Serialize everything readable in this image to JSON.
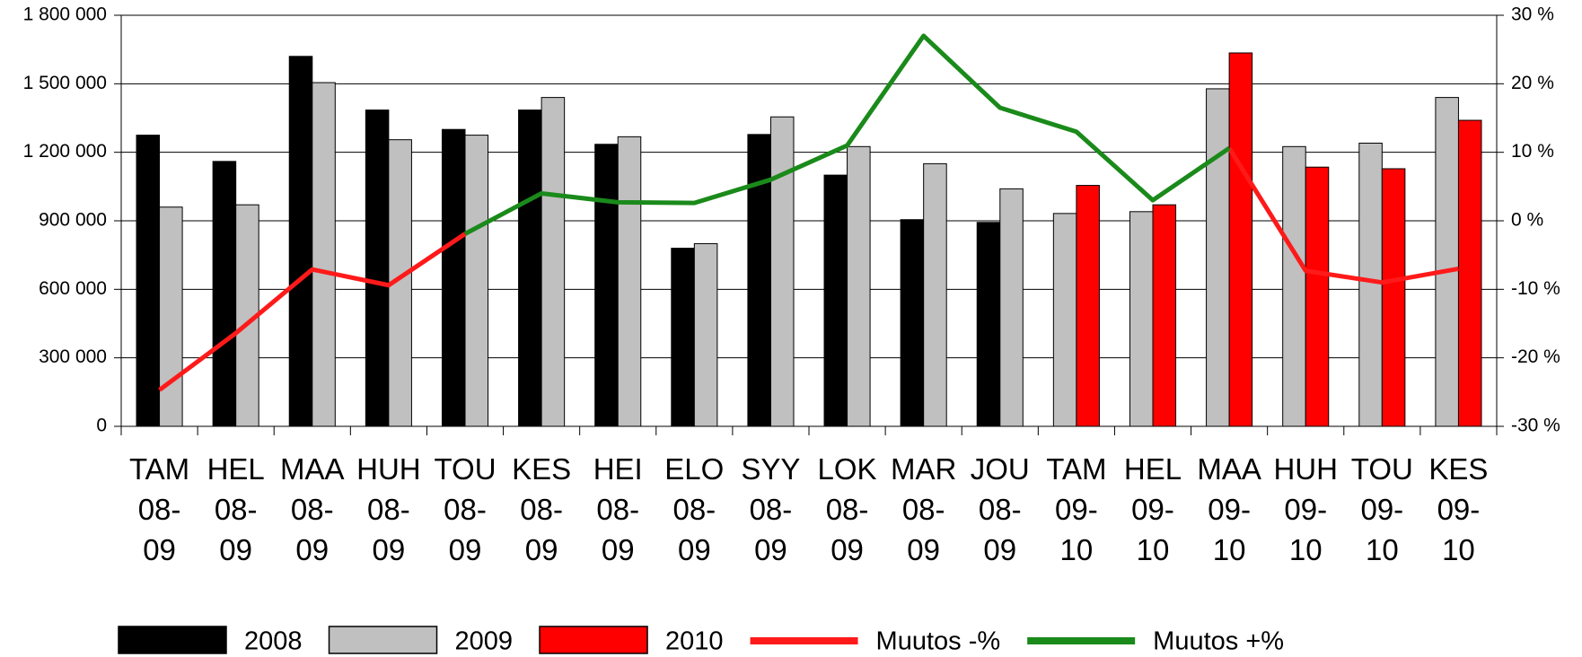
{
  "chart_data": {
    "type": "bar",
    "categories": [
      "TAM 08-09",
      "HEL 08-09",
      "MAA 08-09",
      "HUH 08-09",
      "TOU 08-09",
      "KES 08-09",
      "HEI 08-09",
      "ELO 08-09",
      "SYY 08-09",
      "LOK 08-09",
      "MAR 08-09",
      "JOU 08-09",
      "TAM 09-10",
      "HEL 09-10",
      "MAA 09-10",
      "HUH 09-10",
      "TOU 09-10",
      "KES 09-10"
    ],
    "series": [
      {
        "name": "2008",
        "type": "bar",
        "color": "#000000",
        "values": [
          1275000,
          1160000,
          1620000,
          1385000,
          1300000,
          1385000,
          1235000,
          780000,
          1278000,
          1100000,
          905000,
          893000,
          null,
          null,
          null,
          null,
          null,
          null
        ]
      },
      {
        "name": "2009",
        "type": "bar",
        "color": "#c0c0c0",
        "values": [
          960000,
          970000,
          1505000,
          1255000,
          1275000,
          1440000,
          1268000,
          800000,
          1355000,
          1225000,
          1150000,
          1040000,
          932000,
          940000,
          1478000,
          1225000,
          1240000,
          1440000
        ]
      },
      {
        "name": "2010",
        "type": "bar",
        "color": "#ff0000",
        "values": [
          null,
          null,
          null,
          null,
          null,
          null,
          null,
          null,
          null,
          null,
          null,
          null,
          1055000,
          970000,
          1635000,
          1135000,
          1128000,
          1340000
        ]
      },
      {
        "name": "Muutos -%",
        "type": "line",
        "axis": "y2",
        "color": "#ff1a1a",
        "values": [
          -24.7,
          -16.4,
          -7.1,
          -9.4,
          -1.9,
          null,
          null,
          null,
          null,
          null,
          null,
          null,
          null,
          null,
          10.6,
          -7.3,
          -9.0,
          -7.0
        ]
      },
      {
        "name": "Muutos +%",
        "type": "line",
        "axis": "y2",
        "color": "#1a8a1a",
        "values": [
          null,
          null,
          null,
          null,
          -1.9,
          4.0,
          2.7,
          2.6,
          6.0,
          11.0,
          27.0,
          16.5,
          13.0,
          3.0,
          10.6,
          null,
          null,
          null
        ]
      }
    ],
    "ylim": [
      0,
      1800000
    ],
    "yticks": [
      0,
      {
        "value": 300000,
        "label": "300 000"
      },
      {
        "value": 600000,
        "label": "600 000"
      },
      {
        "value": 900000,
        "label": "900 000"
      },
      {
        "value": 1200000,
        "label": "1 200 000"
      },
      {
        "value": 1500000,
        "label": "1 500 000"
      },
      {
        "value": 1800000,
        "label": "1 800 000"
      }
    ],
    "y2lim": [
      -30,
      30
    ],
    "y2ticks": [
      {
        "value": -30,
        "label": "-30 %"
      },
      {
        "value": -20,
        "label": "-20 %"
      },
      {
        "value": -10,
        "label": "-10 %"
      },
      {
        "value": 0,
        "label": "0 %"
      },
      {
        "value": 10,
        "label": "10 %"
      },
      {
        "value": 20,
        "label": "20 %"
      },
      {
        "value": 30,
        "label": "30 %"
      }
    ],
    "grid": true,
    "legend": "bottom"
  }
}
